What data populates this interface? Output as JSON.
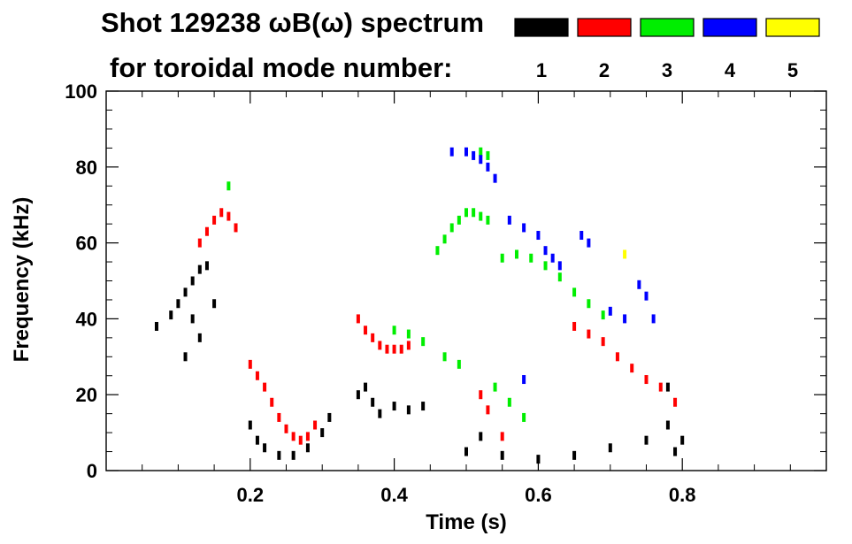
{
  "title": {
    "line1": "Shot 129238 ωB(ω) spectrum",
    "line2": "for toroidal mode number:"
  },
  "chart_data": {
    "type": "scatter",
    "title": "Shot 129238 ωB(ω) spectrum",
    "subtitle": "for toroidal mode number:",
    "xlabel": "Time (s)",
    "ylabel": "Frequency (kHz)",
    "xlim": [
      0.0,
      1.0
    ],
    "ylim": [
      0,
      100
    ],
    "x_ticks": [
      0.2,
      0.4,
      0.6,
      0.8
    ],
    "y_ticks": [
      0,
      20,
      40,
      60,
      80,
      100
    ],
    "x_tick_labels": [
      "0.2",
      "0.4",
      "0.6",
      "0.8"
    ],
    "y_tick_labels": [
      "0",
      "20",
      "40",
      "60",
      "80",
      "100"
    ],
    "grid": false,
    "legend_position": "top-right",
    "series": [
      {
        "name": "1",
        "color": "#000000",
        "points": [
          [
            0.07,
            38
          ],
          [
            0.09,
            41
          ],
          [
            0.1,
            44
          ],
          [
            0.11,
            47
          ],
          [
            0.12,
            50
          ],
          [
            0.13,
            53
          ],
          [
            0.14,
            54
          ],
          [
            0.12,
            40
          ],
          [
            0.13,
            35
          ],
          [
            0.11,
            30
          ],
          [
            0.15,
            44
          ],
          [
            0.2,
            12
          ],
          [
            0.21,
            8
          ],
          [
            0.22,
            6
          ],
          [
            0.24,
            4
          ],
          [
            0.26,
            4
          ],
          [
            0.28,
            6
          ],
          [
            0.3,
            10
          ],
          [
            0.31,
            14
          ],
          [
            0.35,
            20
          ],
          [
            0.36,
            22
          ],
          [
            0.37,
            18
          ],
          [
            0.38,
            15
          ],
          [
            0.4,
            17
          ],
          [
            0.42,
            16
          ],
          [
            0.44,
            17
          ],
          [
            0.5,
            5
          ],
          [
            0.52,
            9
          ],
          [
            0.55,
            4
          ],
          [
            0.6,
            3
          ],
          [
            0.65,
            4
          ],
          [
            0.7,
            6
          ],
          [
            0.75,
            8
          ],
          [
            0.78,
            12
          ],
          [
            0.79,
            5
          ],
          [
            0.8,
            8
          ],
          [
            0.78,
            22
          ]
        ]
      },
      {
        "name": "2",
        "color": "#ff0000",
        "points": [
          [
            0.13,
            60
          ],
          [
            0.14,
            63
          ],
          [
            0.15,
            66
          ],
          [
            0.16,
            68
          ],
          [
            0.17,
            67
          ],
          [
            0.18,
            64
          ],
          [
            0.2,
            28
          ],
          [
            0.21,
            25
          ],
          [
            0.22,
            22
          ],
          [
            0.23,
            18
          ],
          [
            0.24,
            14
          ],
          [
            0.25,
            11
          ],
          [
            0.26,
            9
          ],
          [
            0.27,
            8
          ],
          [
            0.28,
            9
          ],
          [
            0.29,
            12
          ],
          [
            0.35,
            40
          ],
          [
            0.36,
            37
          ],
          [
            0.37,
            35
          ],
          [
            0.38,
            33
          ],
          [
            0.39,
            32
          ],
          [
            0.4,
            32
          ],
          [
            0.41,
            32
          ],
          [
            0.42,
            33
          ],
          [
            0.52,
            20
          ],
          [
            0.53,
            16
          ],
          [
            0.55,
            9
          ],
          [
            0.65,
            38
          ],
          [
            0.67,
            36
          ],
          [
            0.69,
            34
          ],
          [
            0.71,
            30
          ],
          [
            0.73,
            27
          ],
          [
            0.75,
            24
          ],
          [
            0.77,
            22
          ],
          [
            0.79,
            18
          ]
        ]
      },
      {
        "name": "3",
        "color": "#00ee00",
        "points": [
          [
            0.17,
            75
          ],
          [
            0.4,
            37
          ],
          [
            0.42,
            36
          ],
          [
            0.44,
            34
          ],
          [
            0.47,
            30
          ],
          [
            0.49,
            28
          ],
          [
            0.46,
            58
          ],
          [
            0.47,
            61
          ],
          [
            0.48,
            64
          ],
          [
            0.49,
            66
          ],
          [
            0.5,
            68
          ],
          [
            0.51,
            68
          ],
          [
            0.52,
            67
          ],
          [
            0.53,
            66
          ],
          [
            0.55,
            56
          ],
          [
            0.57,
            57
          ],
          [
            0.59,
            56
          ],
          [
            0.61,
            54
          ],
          [
            0.63,
            51
          ],
          [
            0.65,
            47
          ],
          [
            0.67,
            44
          ],
          [
            0.69,
            41
          ],
          [
            0.52,
            84
          ],
          [
            0.53,
            83
          ],
          [
            0.54,
            22
          ],
          [
            0.56,
            18
          ],
          [
            0.58,
            14
          ]
        ]
      },
      {
        "name": "4",
        "color": "#0000ff",
        "points": [
          [
            0.48,
            84
          ],
          [
            0.5,
            84
          ],
          [
            0.51,
            83
          ],
          [
            0.52,
            82
          ],
          [
            0.53,
            80
          ],
          [
            0.54,
            77
          ],
          [
            0.56,
            66
          ],
          [
            0.58,
            64
          ],
          [
            0.6,
            62
          ],
          [
            0.61,
            58
          ],
          [
            0.62,
            56
          ],
          [
            0.63,
            54
          ],
          [
            0.66,
            62
          ],
          [
            0.67,
            60
          ],
          [
            0.7,
            42
          ],
          [
            0.72,
            40
          ],
          [
            0.74,
            49
          ],
          [
            0.75,
            46
          ],
          [
            0.76,
            40
          ],
          [
            0.58,
            24
          ]
        ]
      },
      {
        "name": "5",
        "color": "#ffff00",
        "points": [
          [
            0.72,
            57
          ]
        ]
      }
    ]
  }
}
